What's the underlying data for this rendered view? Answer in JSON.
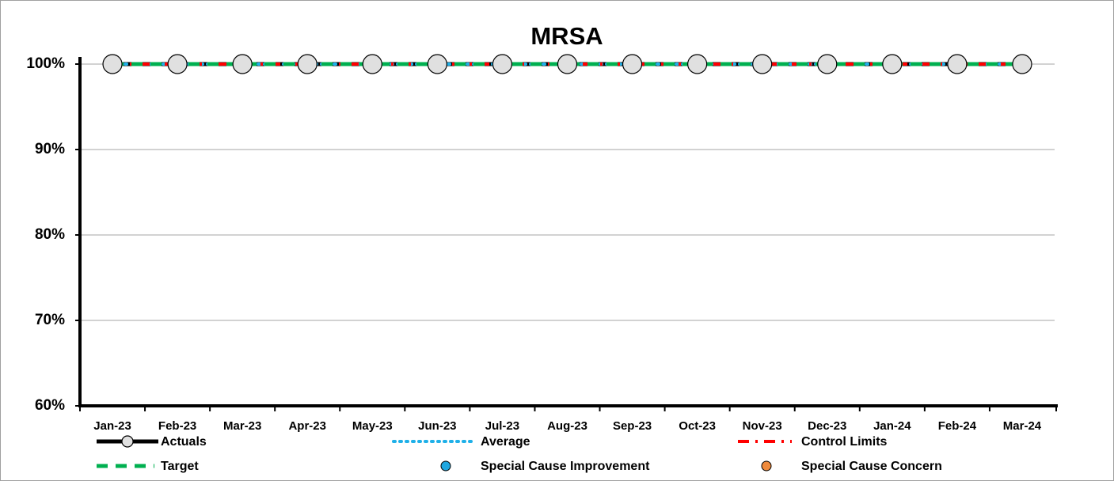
{
  "chart_data": {
    "type": "line",
    "title": "MRSA",
    "categories": [
      "Jan-23",
      "Feb-23",
      "Mar-23",
      "Apr-23",
      "May-23",
      "Jun-23",
      "Jul-23",
      "Aug-23",
      "Sep-23",
      "Oct-23",
      "Nov-23",
      "Dec-23",
      "Jan-24",
      "Feb-24",
      "Mar-24"
    ],
    "series": [
      {
        "name": "Actuals",
        "color": "#000000",
        "dash": "solid",
        "marker": "circle",
        "values": [
          100,
          100,
          100,
          100,
          100,
          100,
          100,
          100,
          100,
          100,
          100,
          100,
          100,
          100,
          100
        ]
      },
      {
        "name": "Average",
        "color": "#1fb0e8",
        "dash": "dotted",
        "values": [
          100,
          100,
          100,
          100,
          100,
          100,
          100,
          100,
          100,
          100,
          100,
          100,
          100,
          100,
          100
        ]
      },
      {
        "name": "Control Limits",
        "color": "#ff0000",
        "dash": "dashdot",
        "values": [
          100,
          100,
          100,
          100,
          100,
          100,
          100,
          100,
          100,
          100,
          100,
          100,
          100,
          100,
          100
        ]
      },
      {
        "name": "Target",
        "color": "#00b050",
        "dash": "dashed",
        "values": [
          100,
          100,
          100,
          100,
          100,
          100,
          100,
          100,
          100,
          100,
          100,
          100,
          100,
          100,
          100
        ]
      },
      {
        "name": "Special Cause Improvement",
        "color": "#1fa7e0",
        "marker": "dot",
        "values": [
          null,
          null,
          null,
          null,
          null,
          null,
          null,
          null,
          null,
          null,
          null,
          null,
          null,
          null,
          null
        ]
      },
      {
        "name": "Special Cause Concern",
        "color": "#ef8a3c",
        "marker": "dot",
        "values": [
          null,
          null,
          null,
          null,
          null,
          null,
          null,
          null,
          null,
          null,
          null,
          null,
          null,
          null,
          null
        ]
      }
    ],
    "ylim": [
      60,
      100
    ],
    "yticks": [
      {
        "value": 60,
        "label": "60%"
      },
      {
        "value": 70,
        "label": "70%"
      },
      {
        "value": 80,
        "label": "80%"
      },
      {
        "value": 90,
        "label": "90%"
      },
      {
        "value": 100,
        "label": "100%"
      }
    ],
    "grid": true
  }
}
